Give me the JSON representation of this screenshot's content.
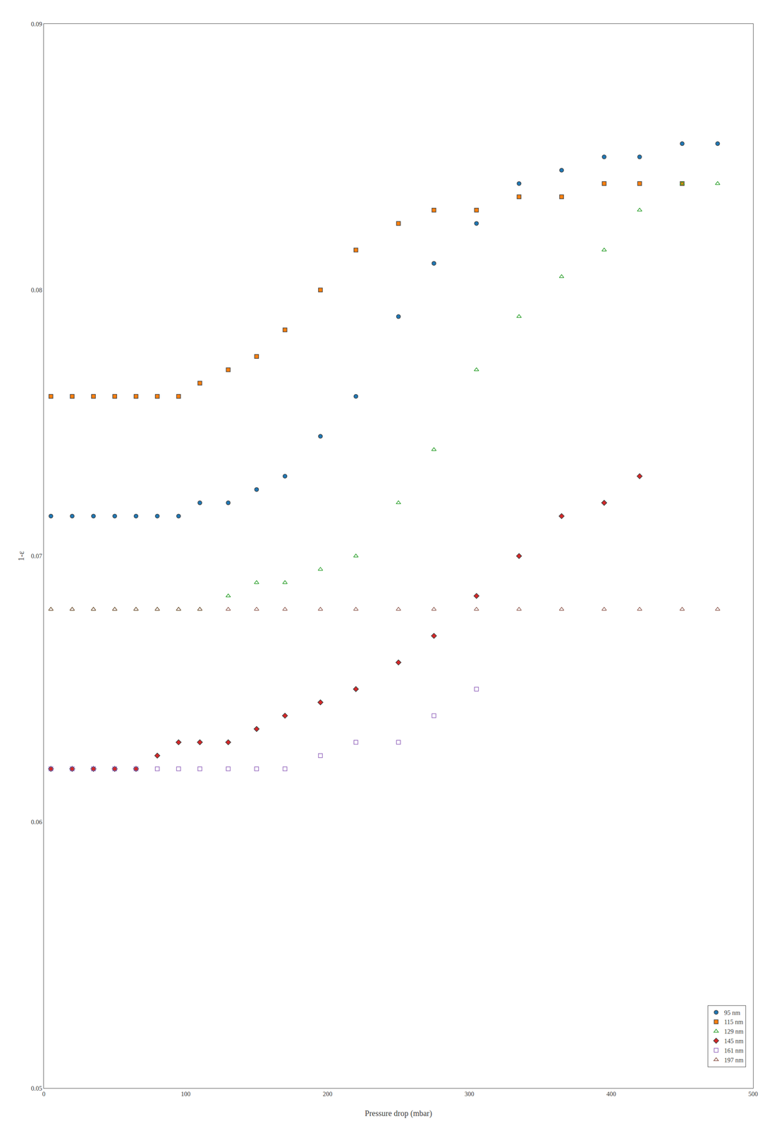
{
  "chart_data": {
    "type": "scatter",
    "xlabel": "Pressure drop (mbar)",
    "ylabel": "1-ε",
    "xlim": [
      0,
      500
    ],
    "ylim": [
      0.05,
      0.09
    ],
    "xticks": [
      0,
      100,
      200,
      300,
      400,
      500
    ],
    "yticks": [
      0.05,
      0.06,
      0.07,
      0.08,
      0.09
    ],
    "grid": false,
    "legend": "lower right",
    "series": [
      {
        "name": "95 nm",
        "marker": "circle",
        "x": [
          5,
          20,
          35,
          50,
          65,
          80,
          95,
          110,
          130,
          150,
          170,
          195,
          220,
          250,
          275,
          305,
          335,
          365,
          395,
          420,
          450,
          475
        ],
        "values": [
          0.0715,
          0.0715,
          0.0715,
          0.0715,
          0.0715,
          0.0715,
          0.0715,
          0.072,
          0.072,
          0.0725,
          0.073,
          0.0745,
          0.076,
          0.079,
          0.081,
          0.0825,
          0.084,
          0.0845,
          0.085,
          0.085,
          0.0855,
          0.0855
        ]
      },
      {
        "name": "115 nm",
        "marker": "square",
        "x": [
          5,
          20,
          35,
          50,
          65,
          80,
          95,
          110,
          130,
          150,
          170,
          195,
          220,
          250,
          275,
          305,
          335,
          365,
          395,
          420,
          450
        ],
        "values": [
          0.076,
          0.076,
          0.076,
          0.076,
          0.076,
          0.076,
          0.076,
          0.0765,
          0.077,
          0.0775,
          0.0785,
          0.08,
          0.0815,
          0.0825,
          0.083,
          0.083,
          0.0835,
          0.0835,
          0.084,
          0.084,
          0.084
        ]
      },
      {
        "name": "129 nm",
        "marker": "triangle-up-open",
        "x": [
          5,
          20,
          35,
          50,
          65,
          80,
          95,
          110,
          130,
          150,
          170,
          195,
          220,
          250,
          275,
          305,
          335,
          365,
          395,
          420,
          450,
          475
        ],
        "values": [
          0.068,
          0.068,
          0.068,
          0.068,
          0.068,
          0.068,
          0.068,
          0.068,
          0.0685,
          0.069,
          0.069,
          0.0695,
          0.07,
          0.072,
          0.074,
          0.077,
          0.079,
          0.0805,
          0.0815,
          0.083,
          0.084,
          0.084
        ]
      },
      {
        "name": "145 nm",
        "marker": "diamond",
        "x": [
          5,
          20,
          35,
          50,
          65,
          80,
          95,
          110,
          130,
          150,
          170,
          195,
          220,
          250,
          275,
          305,
          335,
          365,
          395,
          420
        ],
        "values": [
          0.062,
          0.062,
          0.062,
          0.062,
          0.062,
          0.0625,
          0.063,
          0.063,
          0.063,
          0.0635,
          0.064,
          0.0645,
          0.065,
          0.066,
          0.067,
          0.0685,
          0.07,
          0.0715,
          0.072,
          0.073
        ]
      },
      {
        "name": "161 nm",
        "marker": "square-open",
        "x": [
          5,
          20,
          35,
          50,
          65,
          80,
          95,
          110,
          130,
          150,
          170,
          195,
          220,
          250,
          275,
          305
        ],
        "values": [
          0.062,
          0.062,
          0.062,
          0.062,
          0.062,
          0.062,
          0.062,
          0.062,
          0.062,
          0.062,
          0.062,
          0.0625,
          0.063,
          0.063,
          0.064,
          0.065
        ]
      },
      {
        "name": "197 nm",
        "marker": "triangle-up-open",
        "x": [
          5,
          20,
          35,
          50,
          65,
          80,
          95,
          110,
          130,
          150,
          170,
          195,
          220,
          250,
          275,
          305,
          335,
          365,
          395,
          420,
          450,
          475
        ],
        "values": [
          0.068,
          0.068,
          0.068,
          0.068,
          0.068,
          0.068,
          0.068,
          0.068,
          0.068,
          0.068,
          0.068,
          0.068,
          0.068,
          0.068,
          0.068,
          0.068,
          0.068,
          0.068,
          0.068,
          0.068,
          0.068,
          0.068
        ]
      }
    ]
  }
}
